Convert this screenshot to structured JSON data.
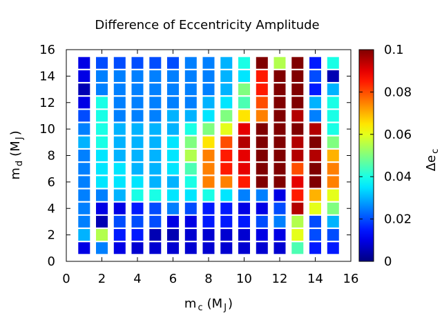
{
  "chart_data": {
    "type": "heatmap",
    "title": "Difference of Eccentricity Amplitude",
    "xlabel": {
      "base": "m",
      "sub": "c",
      "unit_open": "(M",
      "unit_sub": "J",
      "unit_close": ")"
    },
    "ylabel": {
      "base": "m",
      "sub": "d",
      "unit_open": "(M",
      "unit_sub": "J",
      "unit_close": ")"
    },
    "colorbar_label": {
      "base": "Δe",
      "sub": "c"
    },
    "xlim": [
      0,
      16
    ],
    "ylim": [
      0,
      16
    ],
    "x_ticks": [
      "0",
      "2",
      "4",
      "6",
      "8",
      "10",
      "12",
      "14",
      "16"
    ],
    "y_ticks": [
      "0",
      "2",
      "4",
      "6",
      "8",
      "10",
      "12",
      "14",
      "16"
    ],
    "colorbar_ticks": [
      "0",
      "0.02",
      "0.04",
      "0.06",
      "0.08",
      "0.1"
    ],
    "colorbar_range": [
      0,
      0.1
    ],
    "colormap": "jet",
    "x": [
      1,
      2,
      3,
      4,
      5,
      6,
      7,
      8,
      9,
      10,
      11,
      12,
      13,
      14,
      15
    ],
    "y": [
      1,
      2,
      3,
      4,
      5,
      6,
      7,
      8,
      9,
      10,
      11,
      12,
      13,
      14,
      15
    ],
    "z_rows_by_y_ascending": [
      [
        0.01,
        0.025,
        0.01,
        0.008,
        0.008,
        0.008,
        0.008,
        0.008,
        0.008,
        0.008,
        0.008,
        0.008,
        0.045,
        0.015,
        0.015
      ],
      [
        0.03,
        0.055,
        0.015,
        0.015,
        0.005,
        0.005,
        0.008,
        0.008,
        0.008,
        0.008,
        0.01,
        0.01,
        0.06,
        0.02,
        0.02
      ],
      [
        0.025,
        0.005,
        0.02,
        0.02,
        0.02,
        0.01,
        0.01,
        0.015,
        0.015,
        0.015,
        0.02,
        0.025,
        0.055,
        0.02,
        0.03
      ],
      [
        0.025,
        0.01,
        0.01,
        0.015,
        0.02,
        0.025,
        0.02,
        0.015,
        0.015,
        0.01,
        0.01,
        0.02,
        0.095,
        0.06,
        0.05
      ],
      [
        0.025,
        0.025,
        0.03,
        0.04,
        0.04,
        0.035,
        0.035,
        0.04,
        0.035,
        0.025,
        0.025,
        0.01,
        0.085,
        0.07,
        0.06
      ],
      [
        0.025,
        0.035,
        0.035,
        0.035,
        0.03,
        0.03,
        0.04,
        0.075,
        0.075,
        0.085,
        0.1,
        0.1,
        0.09,
        0.1,
        0.075
      ],
      [
        0.025,
        0.035,
        0.035,
        0.03,
        0.03,
        0.035,
        0.045,
        0.075,
        0.085,
        0.09,
        0.1,
        0.1,
        0.08,
        0.1,
        0.075
      ],
      [
        0.025,
        0.035,
        0.03,
        0.03,
        0.03,
        0.035,
        0.055,
        0.075,
        0.085,
        0.09,
        0.1,
        0.1,
        0.095,
        0.095,
        0.07
      ],
      [
        0.03,
        0.04,
        0.03,
        0.03,
        0.03,
        0.035,
        0.05,
        0.065,
        0.08,
        0.095,
        0.1,
        0.1,
        0.095,
        0.1,
        0.05
      ],
      [
        0.025,
        0.04,
        0.03,
        0.03,
        0.03,
        0.03,
        0.04,
        0.05,
        0.06,
        0.09,
        0.1,
        0.1,
        0.1,
        0.095,
        0.04
      ],
      [
        0.02,
        0.04,
        0.025,
        0.025,
        0.025,
        0.03,
        0.03,
        0.035,
        0.05,
        0.065,
        0.075,
        0.1,
        0.095,
        0.025,
        0.04
      ],
      [
        0.01,
        0.04,
        0.025,
        0.025,
        0.025,
        0.025,
        0.025,
        0.03,
        0.035,
        0.045,
        0.08,
        0.1,
        0.1,
        0.03,
        0.04
      ],
      [
        0.005,
        0.025,
        0.025,
        0.025,
        0.025,
        0.025,
        0.025,
        0.025,
        0.03,
        0.05,
        0.085,
        0.1,
        0.1,
        0.015,
        0.03
      ],
      [
        0.01,
        0.025,
        0.025,
        0.025,
        0.025,
        0.025,
        0.025,
        0.025,
        0.03,
        0.035,
        0.085,
        0.1,
        0.1,
        0.02,
        0.005
      ],
      [
        0.01,
        0.02,
        0.02,
        0.02,
        0.02,
        0.02,
        0.025,
        0.025,
        0.03,
        0.04,
        0.1,
        0.055,
        0.1,
        0.015,
        0.04
      ]
    ],
    "grid": false,
    "legend": "colorbar-right"
  }
}
